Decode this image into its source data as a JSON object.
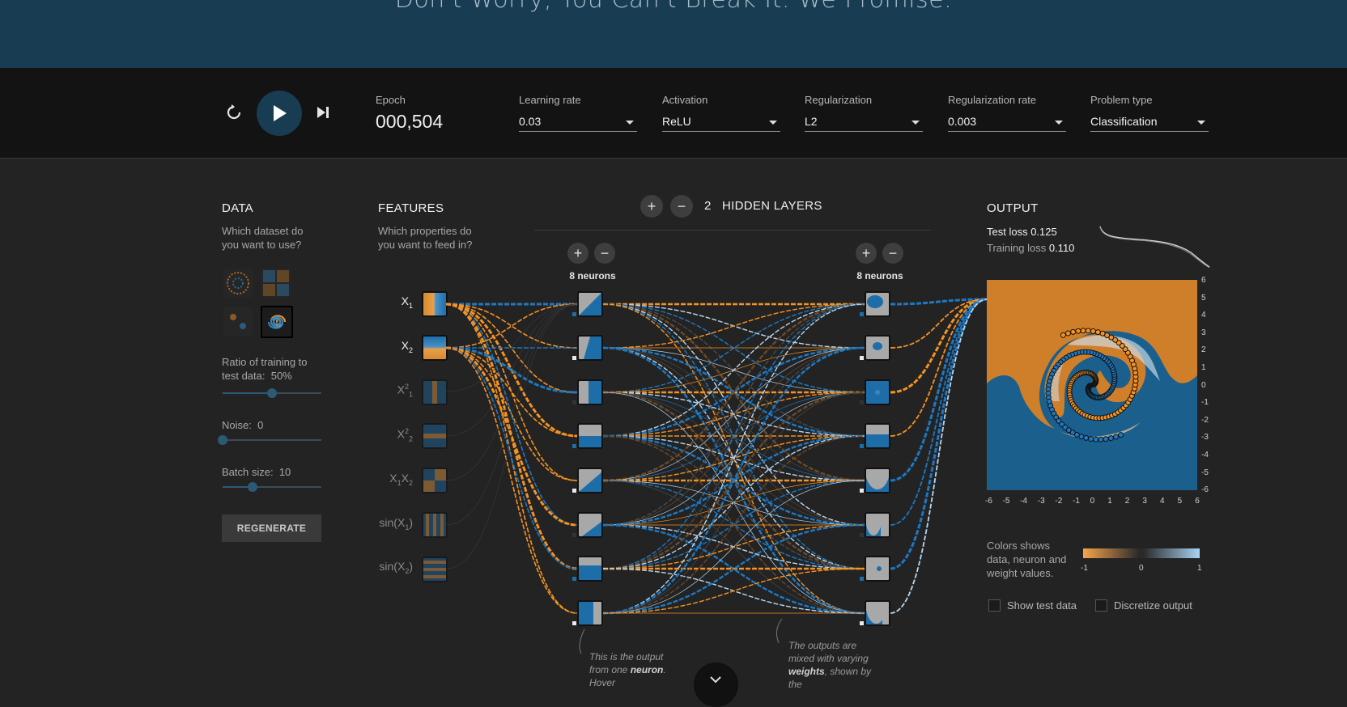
{
  "hero": {
    "title": "Don't Worry, You Can't Break It. We Promise."
  },
  "controls": {
    "epoch_label": "Epoch",
    "epoch_value": "000,504",
    "learning_rate": {
      "label": "Learning rate",
      "value": "0.03"
    },
    "activation": {
      "label": "Activation",
      "value": "ReLU"
    },
    "regularization": {
      "label": "Regularization",
      "value": "L2"
    },
    "regularization_rate": {
      "label": "Regularization rate",
      "value": "0.003"
    },
    "problem_type": {
      "label": "Problem type",
      "value": "Classification"
    }
  },
  "data_panel": {
    "heading": "DATA",
    "question": "Which dataset do you want to use?",
    "ratio_label": "Ratio of training to test data:",
    "ratio_value": "50%",
    "ratio_fraction": 0.5,
    "noise_label": "Noise:",
    "noise_value": "0",
    "noise_fraction": 0.0,
    "batch_label": "Batch size:",
    "batch_value": "10",
    "batch_fraction": 0.3,
    "regenerate": "REGENERATE"
  },
  "features_panel": {
    "heading": "FEATURES",
    "question": "Which properties do you want to feed in?",
    "features": [
      {
        "base": "X",
        "sub": "1",
        "sup": ""
      },
      {
        "base": "X",
        "sub": "2",
        "sup": ""
      },
      {
        "base": "X",
        "sub": "1",
        "sup": "2"
      },
      {
        "base": "X",
        "sub": "2",
        "sup": "2"
      },
      {
        "base": "X",
        "sub": "1",
        "base2": "X",
        "sub2": "2"
      },
      {
        "base": "sin(X",
        "sub": "1",
        "tail": ")"
      },
      {
        "base": "sin(X",
        "sub": "2",
        "tail": ")"
      }
    ]
  },
  "network": {
    "hidden_layer_count": "2",
    "hidden_layers_label": "HIDDEN LAYERS",
    "layer1_neurons": "8 neurons",
    "layer2_neurons": "8 neurons",
    "annotation_neuron_1": "This is the output from one",
    "annotation_neuron_bold": "neuron",
    "annotation_neuron_2": ". Hover",
    "annotation_weights_1": "The outputs are mixed with varying",
    "annotation_weights_bold": "weights",
    "annotation_weights_2": ", shown by the"
  },
  "output_panel": {
    "heading": "OUTPUT",
    "test_loss_label": "Test loss",
    "test_loss_value": "0.125",
    "training_loss_label": "Training loss",
    "training_loss_value": "0.110",
    "y_ticks": [
      "6",
      "5",
      "4",
      "3",
      "2",
      "1",
      "0",
      "-1",
      "-2",
      "-3",
      "-4",
      "-5",
      "-6"
    ],
    "x_ticks": [
      "-6",
      "-5",
      "-4",
      "-3",
      "-2",
      "-1",
      "0",
      "1",
      "2",
      "3",
      "4",
      "5",
      "6"
    ],
    "colors_caption": "Colors shows data, neuron and weight values.",
    "scale_min": "-1",
    "scale_mid": "0",
    "scale_max": "1",
    "show_test_data": "Show test data",
    "discretize_output": "Discretize output",
    "color_negative": "#f59322",
    "color_positive": "#0877bd"
  }
}
